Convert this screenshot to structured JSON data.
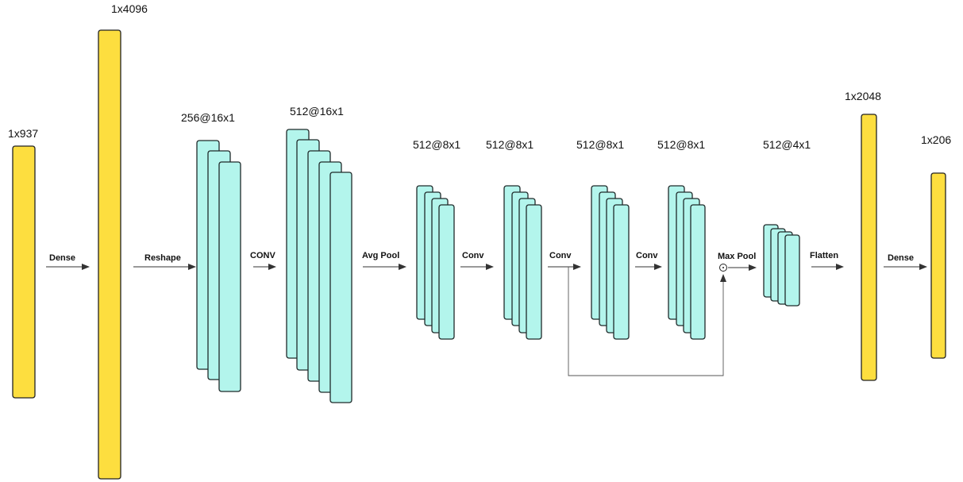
{
  "colors": {
    "dense_fill": "#FDDE3F",
    "fmap_fill": "#B3F5EC",
    "stroke": "#222222",
    "arrow": "#333333"
  },
  "layers": [
    {
      "id": "input",
      "dim_label": "1x937"
    },
    {
      "id": "dense1",
      "dim_label": "1x4096"
    },
    {
      "id": "reshape",
      "dim_label": "256@16x1"
    },
    {
      "id": "conv1",
      "dim_label": "512@16x1"
    },
    {
      "id": "avgpool",
      "dim_label": "512@8x1"
    },
    {
      "id": "conv2",
      "dim_label": "512@8x1"
    },
    {
      "id": "conv3",
      "dim_label": "512@8x1"
    },
    {
      "id": "conv4",
      "dim_label": "512@8x1"
    },
    {
      "id": "maxpool",
      "dim_label": "512@4x1"
    },
    {
      "id": "flatten",
      "dim_label": "1x2048"
    },
    {
      "id": "output",
      "dim_label": "1x206"
    }
  ],
  "operations": [
    {
      "id": "op-dense-1",
      "label": "Dense"
    },
    {
      "id": "op-reshape",
      "label": "Reshape"
    },
    {
      "id": "op-conv-1",
      "label": "CONV"
    },
    {
      "id": "op-avg-pool",
      "label": "Avg Pool"
    },
    {
      "id": "op-conv-2",
      "label": "Conv"
    },
    {
      "id": "op-conv-3",
      "label": "Conv"
    },
    {
      "id": "op-conv-4",
      "label": "Conv"
    },
    {
      "id": "op-max-pool",
      "label": "Max Pool"
    },
    {
      "id": "op-flatten",
      "label": "Flatten"
    },
    {
      "id": "op-dense-2",
      "label": "Dense"
    }
  ],
  "skip_connection": {
    "symbol": "⊙"
  }
}
